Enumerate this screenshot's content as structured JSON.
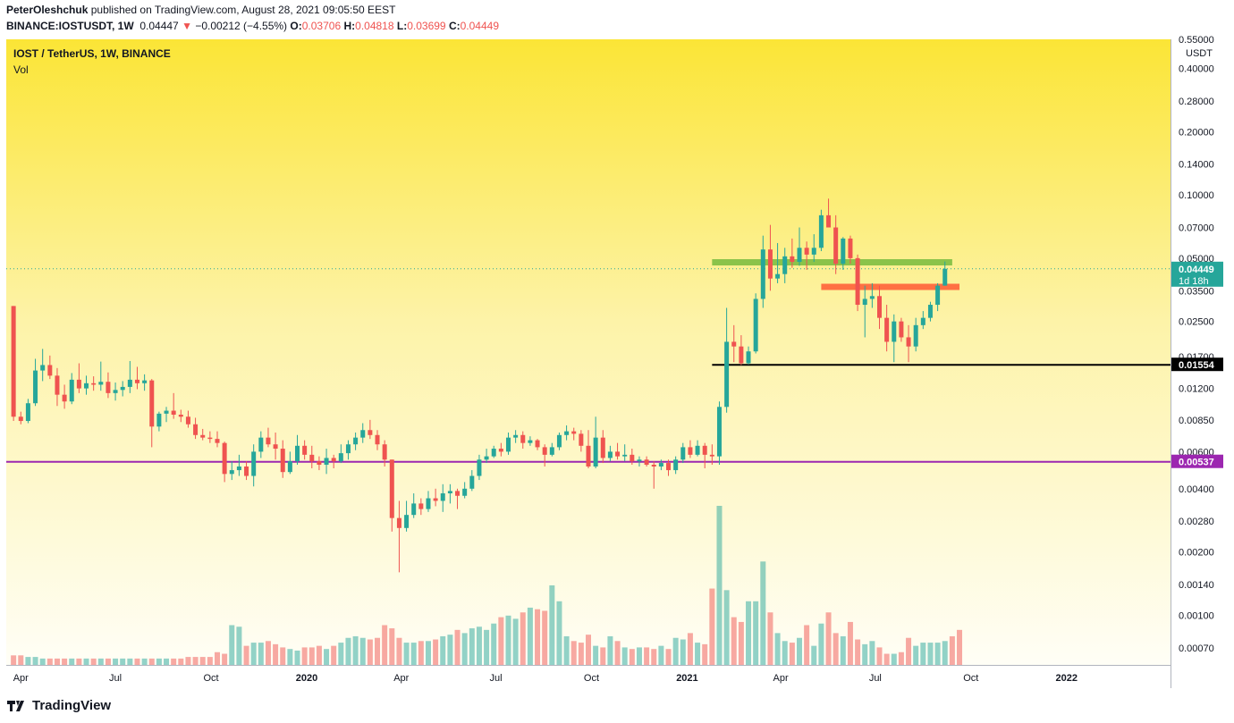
{
  "header": {
    "publisher": "PeterOleshchuk",
    "published_text": "published on TradingView.com, August 28, 2021 09:05:50 EEST",
    "symbol": "BINANCE:IOSTUSDT, 1W",
    "last": "0.04447",
    "change": "−0.00212 (−4.55%)",
    "o_label": "O:",
    "o": "0.03706",
    "h_label": "H:",
    "h": "0.04818",
    "l_label": "L:",
    "l": "0.03699",
    "c_label": "C:",
    "c": "0.04449"
  },
  "pane": {
    "title": "IOST / TetherUS, 1W, BINANCE",
    "vol_label": "Vol"
  },
  "footer": {
    "brand": "TradingView"
  },
  "colors": {
    "up": "#26a69a",
    "down": "#ef5350",
    "purple": "#9c27b0",
    "green_zone": "#8bc34a",
    "orange_zone": "#ff7043"
  },
  "chart_data": {
    "type": "candlestick",
    "title": "IOST / TetherUS, 1W, BINANCE",
    "currency_label": "USDT",
    "scale": "log",
    "ylim": [
      0.00058,
      0.55
    ],
    "y_ticks": [
      "0.55000",
      "0.40000",
      "0.28000",
      "0.20000",
      "0.14000",
      "0.10000",
      "0.07000",
      "0.05000",
      "0.03500",
      "0.02500",
      "0.01700",
      "0.01200",
      "0.00850",
      "0.00600",
      "0.00400",
      "0.00280",
      "0.00200",
      "0.00140",
      "0.00100",
      "0.00070"
    ],
    "x_ticks": [
      "Apr",
      "Jul",
      "Oct",
      "2020",
      "Apr",
      "Jul",
      "Oct",
      "2021",
      "Apr",
      "Jul",
      "Oct",
      "2022"
    ],
    "x_range": [
      "2019-03-18",
      "2022-04-11"
    ],
    "price_labels": [
      {
        "text": "0.04449",
        "sub": "1d 18h",
        "value": 0.04449,
        "color": "#26a69a"
      },
      {
        "text": "0.01554",
        "value": 0.01554,
        "color": "#000000"
      },
      {
        "text": "0.00537",
        "value": 0.00537,
        "color": "#9c27b0"
      }
    ],
    "horizontal_lines": [
      {
        "value": 0.01554,
        "from": "2021-01-25",
        "color": "#000000"
      },
      {
        "value": 0.00537,
        "from": "2019-03-18",
        "color": "#9c27b0"
      }
    ],
    "zones": [
      {
        "value": 0.0478,
        "from": "2021-01-25",
        "to": "2021-09-13",
        "color": "#8bc34a"
      },
      {
        "value": 0.0365,
        "from": "2021-05-10",
        "to": "2021-09-20",
        "color": "#ff7043"
      }
    ],
    "candles": [
      [
        0.0296,
        0.0296,
        0.0084,
        0.0088
      ],
      [
        0.0088,
        0.0093,
        0.0081,
        0.0084
      ],
      [
        0.0084,
        0.0107,
        0.0082,
        0.0102
      ],
      [
        0.0102,
        0.0166,
        0.0099,
        0.0146
      ],
      [
        0.0146,
        0.0185,
        0.013,
        0.0155
      ],
      [
        0.0155,
        0.0172,
        0.0133,
        0.0138
      ],
      [
        0.0138,
        0.015,
        0.0099,
        0.0112
      ],
      [
        0.0112,
        0.0125,
        0.0096,
        0.0104
      ],
      [
        0.0104,
        0.0142,
        0.0101,
        0.0132
      ],
      [
        0.0132,
        0.0158,
        0.0114,
        0.012
      ],
      [
        0.012,
        0.0138,
        0.0112,
        0.0127
      ],
      [
        0.0127,
        0.0137,
        0.0117,
        0.0125
      ],
      [
        0.0125,
        0.0161,
        0.0117,
        0.0129
      ],
      [
        0.0129,
        0.0143,
        0.0108,
        0.0114
      ],
      [
        0.0114,
        0.0128,
        0.0105,
        0.0118
      ],
      [
        0.0118,
        0.013,
        0.011,
        0.0122
      ],
      [
        0.0122,
        0.0162,
        0.0114,
        0.0132
      ],
      [
        0.0132,
        0.0152,
        0.0119,
        0.0127
      ],
      [
        0.0127,
        0.014,
        0.0117,
        0.0131
      ],
      [
        0.0131,
        0.0133,
        0.0063,
        0.0079
      ],
      [
        0.0079,
        0.0093,
        0.0075,
        0.0091
      ],
      [
        0.0091,
        0.0098,
        0.0083,
        0.0094
      ],
      [
        0.0094,
        0.0114,
        0.0086,
        0.009
      ],
      [
        0.009,
        0.0095,
        0.0083,
        0.0088
      ],
      [
        0.0088,
        0.0094,
        0.0078,
        0.0081
      ],
      [
        0.0081,
        0.0087,
        0.0069,
        0.0072
      ],
      [
        0.0072,
        0.0077,
        0.0068,
        0.007
      ],
      [
        0.007,
        0.0075,
        0.0066,
        0.0069
      ],
      [
        0.0069,
        0.0075,
        0.0063,
        0.0066
      ],
      [
        0.0066,
        0.0067,
        0.0043,
        0.0047
      ],
      [
        0.0047,
        0.0054,
        0.0044,
        0.0049
      ],
      [
        0.0049,
        0.0058,
        0.0046,
        0.0051
      ],
      [
        0.0051,
        0.0054,
        0.0044,
        0.0046
      ],
      [
        0.0046,
        0.0065,
        0.0041,
        0.006
      ],
      [
        0.006,
        0.0075,
        0.0056,
        0.007
      ],
      [
        0.007,
        0.0078,
        0.0063,
        0.0065
      ],
      [
        0.0065,
        0.0074,
        0.0055,
        0.0062
      ],
      [
        0.0062,
        0.0068,
        0.0045,
        0.0048
      ],
      [
        0.0048,
        0.006,
        0.0047,
        0.0054
      ],
      [
        0.0054,
        0.0072,
        0.0052,
        0.0064
      ],
      [
        0.0064,
        0.0068,
        0.0055,
        0.0058
      ],
      [
        0.0058,
        0.0064,
        0.005,
        0.0054
      ],
      [
        0.0054,
        0.0057,
        0.0049,
        0.0052
      ],
      [
        0.0052,
        0.0062,
        0.0047,
        0.0056
      ],
      [
        0.0056,
        0.0058,
        0.005,
        0.0054
      ],
      [
        0.0054,
        0.0065,
        0.0053,
        0.0059
      ],
      [
        0.0059,
        0.0068,
        0.0055,
        0.0065
      ],
      [
        0.0065,
        0.0074,
        0.0061,
        0.007
      ],
      [
        0.007,
        0.0082,
        0.0066,
        0.0076
      ],
      [
        0.0076,
        0.0085,
        0.0069,
        0.0072
      ],
      [
        0.0072,
        0.0076,
        0.0061,
        0.0065
      ],
      [
        0.0065,
        0.0068,
        0.0051,
        0.0055
      ],
      [
        0.0055,
        0.0055,
        0.0025,
        0.0029
      ],
      [
        0.0029,
        0.0035,
        0.0016,
        0.0026
      ],
      [
        0.0026,
        0.0035,
        0.0025,
        0.003
      ],
      [
        0.003,
        0.0038,
        0.0029,
        0.0034
      ],
      [
        0.0034,
        0.0036,
        0.003,
        0.0032
      ],
      [
        0.0032,
        0.0039,
        0.0031,
        0.0036
      ],
      [
        0.0036,
        0.004,
        0.0033,
        0.0035
      ],
      [
        0.0035,
        0.0042,
        0.0031,
        0.0038
      ],
      [
        0.0038,
        0.0042,
        0.0034,
        0.0039
      ],
      [
        0.0039,
        0.004,
        0.0032,
        0.0037
      ],
      [
        0.0037,
        0.0043,
        0.0036,
        0.004
      ],
      [
        0.004,
        0.0049,
        0.0039,
        0.0046
      ],
      [
        0.0046,
        0.0058,
        0.0044,
        0.0055
      ],
      [
        0.0055,
        0.0062,
        0.0053,
        0.0057
      ],
      [
        0.0057,
        0.0064,
        0.0056,
        0.0062
      ],
      [
        0.0062,
        0.0066,
        0.0057,
        0.006
      ],
      [
        0.006,
        0.0074,
        0.0058,
        0.007
      ],
      [
        0.007,
        0.0076,
        0.0066,
        0.0072
      ],
      [
        0.0072,
        0.0075,
        0.0062,
        0.0066
      ],
      [
        0.0066,
        0.0071,
        0.0064,
        0.0068
      ],
      [
        0.0068,
        0.0069,
        0.0061,
        0.0063
      ],
      [
        0.0063,
        0.0065,
        0.0051,
        0.0058
      ],
      [
        0.0058,
        0.0066,
        0.0057,
        0.0063
      ],
      [
        0.0063,
        0.0074,
        0.0061,
        0.0072
      ],
      [
        0.0072,
        0.008,
        0.0068,
        0.0075
      ],
      [
        0.0075,
        0.0078,
        0.0068,
        0.0073
      ],
      [
        0.0073,
        0.0076,
        0.006,
        0.0064
      ],
      [
        0.0064,
        0.0076,
        0.005,
        0.0051
      ],
      [
        0.0051,
        0.0088,
        0.005,
        0.007
      ],
      [
        0.007,
        0.0076,
        0.0053,
        0.0056
      ],
      [
        0.0056,
        0.0064,
        0.0054,
        0.006
      ],
      [
        0.006,
        0.0066,
        0.0055,
        0.0057
      ],
      [
        0.0057,
        0.0065,
        0.0054,
        0.0058
      ],
      [
        0.0058,
        0.0062,
        0.0052,
        0.0054
      ],
      [
        0.0054,
        0.0057,
        0.0051,
        0.0055
      ],
      [
        0.0055,
        0.0057,
        0.0051,
        0.0052
      ],
      [
        0.0052,
        0.0054,
        0.004,
        0.0051
      ],
      [
        0.0051,
        0.0055,
        0.0049,
        0.0053
      ],
      [
        0.0053,
        0.0055,
        0.0046,
        0.0049
      ],
      [
        0.0049,
        0.0057,
        0.0047,
        0.0055
      ],
      [
        0.0055,
        0.0066,
        0.0053,
        0.0063
      ],
      [
        0.0063,
        0.0068,
        0.0056,
        0.0058
      ],
      [
        0.0058,
        0.0068,
        0.0057,
        0.0064
      ],
      [
        0.0064,
        0.0066,
        0.005,
        0.0058
      ],
      [
        0.0058,
        0.0065,
        0.0052,
        0.0057
      ],
      [
        0.0057,
        0.0104,
        0.0052,
        0.0098
      ],
      [
        0.0098,
        0.029,
        0.0092,
        0.02
      ],
      [
        0.02,
        0.024,
        0.016,
        0.019
      ],
      [
        0.019,
        0.0215,
        0.0155,
        0.0158
      ],
      [
        0.0158,
        0.019,
        0.0156,
        0.018
      ],
      [
        0.018,
        0.034,
        0.0176,
        0.032
      ],
      [
        0.032,
        0.064,
        0.029,
        0.055
      ],
      [
        0.055,
        0.072,
        0.035,
        0.04
      ],
      [
        0.04,
        0.059,
        0.038,
        0.042
      ],
      [
        0.042,
        0.056,
        0.038,
        0.051
      ],
      [
        0.051,
        0.062,
        0.045,
        0.048
      ],
      [
        0.048,
        0.07,
        0.046,
        0.056
      ],
      [
        0.056,
        0.06,
        0.044,
        0.052
      ],
      [
        0.052,
        0.065,
        0.048,
        0.056
      ],
      [
        0.056,
        0.085,
        0.054,
        0.08
      ],
      [
        0.08,
        0.096,
        0.07,
        0.07
      ],
      [
        0.07,
        0.08,
        0.042,
        0.047
      ],
      [
        0.047,
        0.063,
        0.044,
        0.062
      ],
      [
        0.062,
        0.064,
        0.047,
        0.05
      ],
      [
        0.05,
        0.052,
        0.028,
        0.03
      ],
      [
        0.03,
        0.037,
        0.021,
        0.032
      ],
      [
        0.032,
        0.038,
        0.029,
        0.033
      ],
      [
        0.033,
        0.037,
        0.023,
        0.026
      ],
      [
        0.026,
        0.03,
        0.018,
        0.02
      ],
      [
        0.02,
        0.027,
        0.016,
        0.025
      ],
      [
        0.025,
        0.026,
        0.02,
        0.021
      ],
      [
        0.021,
        0.024,
        0.016,
        0.019
      ],
      [
        0.019,
        0.026,
        0.018,
        0.024
      ],
      [
        0.024,
        0.028,
        0.023,
        0.026
      ],
      [
        0.026,
        0.031,
        0.025,
        0.03
      ],
      [
        0.03,
        0.038,
        0.028,
        0.037
      ],
      [
        0.037,
        0.0482,
        0.037,
        0.0445
      ]
    ],
    "volume_units": "relative",
    "volumes": [
      6,
      6,
      5,
      5,
      4,
      4,
      4,
      4,
      4,
      4,
      4,
      4,
      4,
      4,
      4,
      4,
      4,
      4,
      4,
      4,
      4,
      4,
      4,
      4,
      5,
      5,
      5,
      5,
      8,
      7,
      25,
      24,
      12,
      14,
      14,
      15,
      13,
      11,
      10,
      9,
      11,
      11,
      12,
      10,
      12,
      14,
      17,
      18,
      17,
      16,
      17,
      25,
      23,
      17,
      14,
      14,
      15,
      15,
      16,
      18,
      19,
      22,
      20,
      23,
      24,
      22,
      26,
      30,
      31,
      29,
      33,
      36,
      35,
      34,
      50,
      40,
      18,
      15,
      14,
      19,
      12,
      11,
      18,
      15,
      11,
      10,
      11,
      11,
      10,
      12,
      10,
      17,
      16,
      20,
      14,
      13,
      48,
      100,
      47,
      30,
      27,
      40,
      40,
      65,
      33,
      20,
      15,
      14,
      17,
      25,
      12,
      26,
      33,
      20,
      18,
      27,
      16,
      13,
      15,
      11,
      7,
      7,
      8,
      17,
      12,
      14,
      14,
      14,
      15,
      18,
      22
    ]
  }
}
